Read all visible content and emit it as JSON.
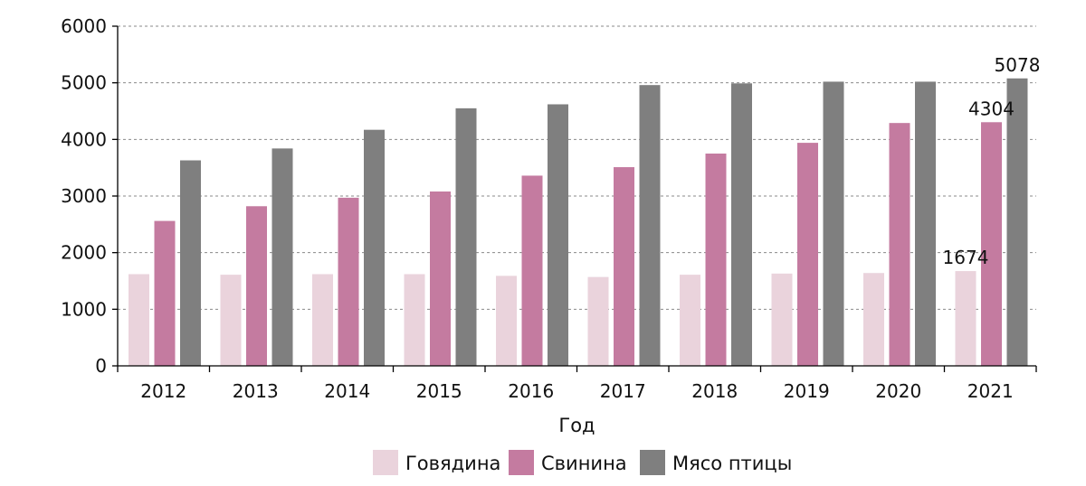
{
  "chart_data": {
    "type": "bar",
    "xlabel": "Год",
    "ylabel": "",
    "ylim": [
      0,
      6000
    ],
    "yticks": [
      0,
      1000,
      2000,
      3000,
      4000,
      5000,
      6000
    ],
    "grid": "horizontal dashed",
    "legend_position": "bottom",
    "categories": [
      "2012",
      "2013",
      "2014",
      "2015",
      "2016",
      "2017",
      "2018",
      "2019",
      "2020",
      "2021"
    ],
    "series": [
      {
        "name": "Говядина",
        "color": "#ead3dc",
        "values": [
          1620,
          1610,
          1620,
          1620,
          1590,
          1570,
          1610,
          1630,
          1640,
          1674
        ]
      },
      {
        "name": "Свинина",
        "color": "#c47ba0",
        "values": [
          2560,
          2820,
          2970,
          3080,
          3360,
          3510,
          3750,
          3940,
          4290,
          4304
        ]
      },
      {
        "name": "Мясо птицы",
        "color": "#7f7f7f",
        "values": [
          3630,
          3840,
          4170,
          4550,
          4620,
          4960,
          4990,
          5020,
          5020,
          5078
        ]
      }
    ],
    "data_labels": [
      {
        "series": 0,
        "category": "2021",
        "text": "1674"
      },
      {
        "series": 1,
        "category": "2021",
        "text": "4304"
      },
      {
        "series": 2,
        "category": "2021",
        "text": "5078"
      }
    ]
  }
}
